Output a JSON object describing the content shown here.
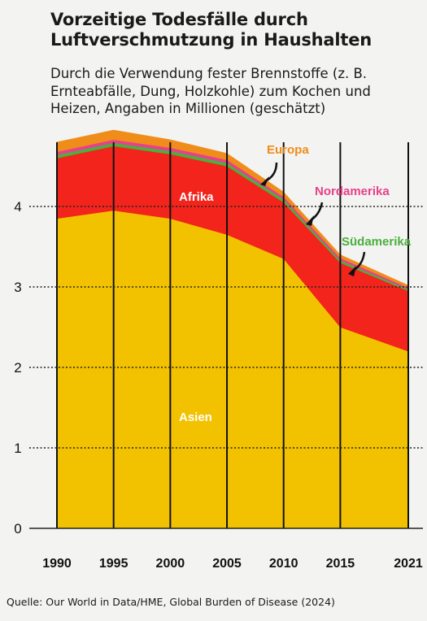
{
  "title": "Vorzeitige Todesfälle durch Luftverschmutzung in Haushalten",
  "subtitle": "Durch die Verwendung fester Brennstoffe (z. B. Ernteabfälle, Dung, Holzkohle) zum Kochen und Heizen, Angaben in Millionen (geschätzt)",
  "source": "Quelle: Our World in Data/HME, Global Burden of Disease (2024)",
  "chart_data": {
    "type": "area",
    "stacked": true,
    "x": [
      1990,
      1995,
      2000,
      2005,
      2010,
      2015,
      2021
    ],
    "xticks": [
      "1990",
      "1995",
      "2000",
      "2005",
      "2010",
      "2015",
      "2021"
    ],
    "yticks": [
      "0",
      "1",
      "2",
      "3",
      "4"
    ],
    "ylim": [
      0,
      5
    ],
    "grid": "dotted horizontal at 1, 2, 3, 4",
    "series": [
      {
        "name": "Asien",
        "values": [
          3.85,
          3.95,
          3.85,
          3.65,
          3.35,
          2.5,
          2.2
        ],
        "color": "#f2c200"
      },
      {
        "name": "Afrika",
        "values": [
          0.75,
          0.8,
          0.8,
          0.85,
          0.7,
          0.8,
          0.75
        ],
        "color": "#f2241b"
      },
      {
        "name": "Südamerika",
        "values": [
          0.04,
          0.04,
          0.04,
          0.04,
          0.04,
          0.03,
          0.02
        ],
        "color": "#4caf3f"
      },
      {
        "name": "Nordamerika",
        "values": [
          0.04,
          0.04,
          0.04,
          0.04,
          0.03,
          0.03,
          0.02
        ],
        "color": "#e8408c"
      },
      {
        "name": "Europa",
        "values": [
          0.12,
          0.12,
          0.1,
          0.08,
          0.06,
          0.04,
          0.03
        ],
        "color": "#f08c1a"
      }
    ],
    "labels": {
      "asien": "Asien",
      "afrika": "Afrika",
      "europa": "Europa",
      "nordamerika": "Nordamerika",
      "suedamerika": "Südamerika"
    }
  }
}
